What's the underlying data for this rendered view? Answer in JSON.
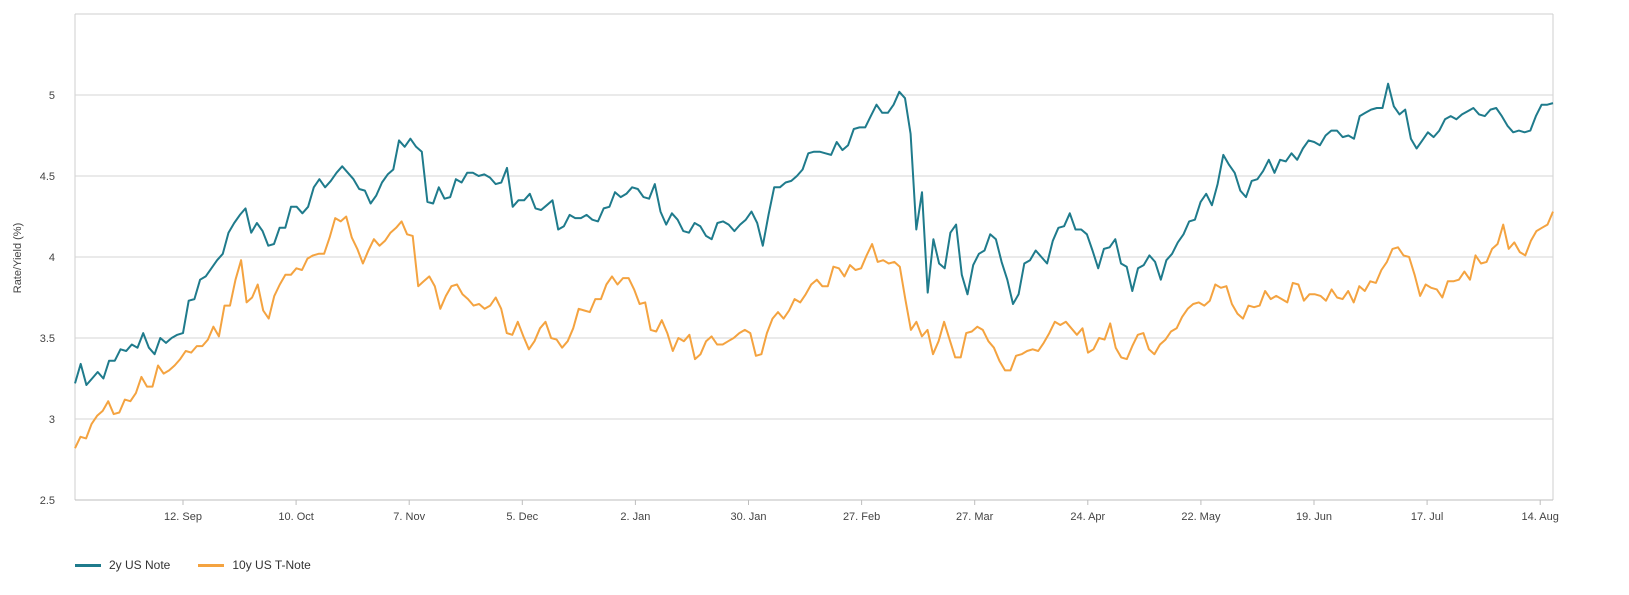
{
  "chart_data": {
    "type": "line",
    "ylabel": "Rate/Yield (%)",
    "ylim": [
      2.5,
      5.5
    ],
    "yticks": [
      2.5,
      3,
      3.5,
      4,
      4.5,
      5
    ],
    "ytick_labels": [
      "2.5",
      "3",
      "3.5",
      "4",
      "4.5",
      "5"
    ],
    "grid": true,
    "legend_position": "bottom-left",
    "x_tick_labels": [
      "12. Sep",
      "10. Oct",
      "7. Nov",
      "5. Dec",
      "2. Jan",
      "30. Jan",
      "27. Feb",
      "27. Mar",
      "24. Apr",
      "22. May",
      "19. Jun",
      "17. Jul",
      "14. Aug"
    ],
    "series": [
      {
        "name": "2y US Note",
        "color": "#1f7b8c",
        "values": [
          3.22,
          3.34,
          3.21,
          3.25,
          3.29,
          3.25,
          3.36,
          3.36,
          3.43,
          3.42,
          3.46,
          3.44,
          3.53,
          3.44,
          3.4,
          3.5,
          3.47,
          3.5,
          3.52,
          3.53,
          3.73,
          3.74,
          3.86,
          3.88,
          3.93,
          3.98,
          4.02,
          4.15,
          4.21,
          4.26,
          4.3,
          4.15,
          4.21,
          4.16,
          4.07,
          4.08,
          4.18,
          4.18,
          4.31,
          4.31,
          4.27,
          4.31,
          4.43,
          4.48,
          4.43,
          4.47,
          4.52,
          4.56,
          4.52,
          4.48,
          4.42,
          4.41,
          4.33,
          4.38,
          4.46,
          4.51,
          4.54,
          4.72,
          4.68,
          4.73,
          4.68,
          4.65,
          4.34,
          4.33,
          4.43,
          4.36,
          4.37,
          4.48,
          4.46,
          4.52,
          4.52,
          4.5,
          4.51,
          4.49,
          4.45,
          4.46,
          4.55,
          4.31,
          4.35,
          4.35,
          4.39,
          4.3,
          4.29,
          4.32,
          4.35,
          4.17,
          4.19,
          4.26,
          4.24,
          4.24,
          4.26,
          4.23,
          4.22,
          4.3,
          4.31,
          4.4,
          4.37,
          4.39,
          4.43,
          4.42,
          4.37,
          4.36,
          4.45,
          4.28,
          4.2,
          4.27,
          4.23,
          4.16,
          4.15,
          4.21,
          4.19,
          4.13,
          4.11,
          4.21,
          4.22,
          4.2,
          4.16,
          4.2,
          4.23,
          4.28,
          4.21,
          4.07,
          4.26,
          4.43,
          4.43,
          4.46,
          4.47,
          4.5,
          4.54,
          4.64,
          4.65,
          4.65,
          4.64,
          4.63,
          4.71,
          4.66,
          4.69,
          4.79,
          4.8,
          4.8,
          4.87,
          4.94,
          4.89,
          4.89,
          4.94,
          5.02,
          4.98,
          4.76,
          4.17,
          4.4,
          3.78,
          4.11,
          3.96,
          3.93,
          4.15,
          4.2,
          3.89,
          3.77,
          3.95,
          4.02,
          4.04,
          4.14,
          4.11,
          3.97,
          3.86,
          3.71,
          3.77,
          3.96,
          3.98,
          4.04,
          4.0,
          3.96,
          4.1,
          4.18,
          4.19,
          4.27,
          4.17,
          4.17,
          4.14,
          4.04,
          3.93,
          4.05,
          4.06,
          4.11,
          3.96,
          3.94,
          3.79,
          3.93,
          3.95,
          4.01,
          3.97,
          3.86,
          3.98,
          4.02,
          4.09,
          4.14,
          4.22,
          4.23,
          4.34,
          4.39,
          4.32,
          4.45,
          4.63,
          4.57,
          4.52,
          4.41,
          4.37,
          4.47,
          4.48,
          4.53,
          4.6,
          4.52,
          4.6,
          4.59,
          4.64,
          4.6,
          4.67,
          4.72,
          4.71,
          4.69,
          4.75,
          4.78,
          4.78,
          4.74,
          4.75,
          4.73,
          4.87,
          4.89,
          4.91,
          4.92,
          4.92,
          5.07,
          4.93,
          4.88,
          4.91,
          4.73,
          4.67,
          4.72,
          4.77,
          4.74,
          4.78,
          4.85,
          4.87,
          4.85,
          4.88,
          4.9,
          4.92,
          4.88,
          4.87,
          4.91,
          4.92,
          4.87,
          4.81,
          4.77,
          4.78,
          4.77,
          4.78,
          4.87,
          4.94,
          4.94,
          4.95
        ]
      },
      {
        "name": "10y US T-Note",
        "color": "#f4a340",
        "values": [
          2.82,
          2.89,
          2.88,
          2.97,
          3.02,
          3.05,
          3.11,
          3.03,
          3.04,
          3.12,
          3.11,
          3.16,
          3.26,
          3.2,
          3.2,
          3.33,
          3.28,
          3.3,
          3.33,
          3.37,
          3.42,
          3.41,
          3.45,
          3.45,
          3.49,
          3.57,
          3.51,
          3.7,
          3.7,
          3.86,
          3.98,
          3.72,
          3.75,
          3.83,
          3.67,
          3.62,
          3.76,
          3.83,
          3.89,
          3.89,
          3.93,
          3.92,
          3.99,
          4.01,
          4.02,
          4.02,
          4.12,
          4.24,
          4.22,
          4.25,
          4.12,
          4.05,
          3.96,
          4.04,
          4.11,
          4.07,
          4.1,
          4.15,
          4.18,
          4.22,
          4.14,
          4.13,
          3.82,
          3.85,
          3.88,
          3.82,
          3.68,
          3.76,
          3.82,
          3.83,
          3.77,
          3.74,
          3.7,
          3.71,
          3.68,
          3.7,
          3.75,
          3.68,
          3.53,
          3.52,
          3.6,
          3.51,
          3.43,
          3.48,
          3.56,
          3.6,
          3.5,
          3.49,
          3.44,
          3.48,
          3.56,
          3.68,
          3.67,
          3.66,
          3.74,
          3.74,
          3.83,
          3.88,
          3.83,
          3.87,
          3.87,
          3.8,
          3.71,
          3.72,
          3.55,
          3.54,
          3.61,
          3.53,
          3.42,
          3.5,
          3.48,
          3.52,
          3.37,
          3.4,
          3.48,
          3.51,
          3.46,
          3.46,
          3.48,
          3.5,
          3.53,
          3.55,
          3.53,
          3.39,
          3.4,
          3.53,
          3.62,
          3.66,
          3.62,
          3.67,
          3.74,
          3.72,
          3.77,
          3.83,
          3.86,
          3.82,
          3.82,
          3.94,
          3.93,
          3.88,
          3.95,
          3.92,
          3.93,
          4.01,
          4.08,
          3.97,
          3.98,
          3.96,
          3.97,
          3.94,
          3.74,
          3.55,
          3.6,
          3.51,
          3.55,
          3.4,
          3.48,
          3.6,
          3.49,
          3.38,
          3.38,
          3.53,
          3.54,
          3.57,
          3.55,
          3.48,
          3.44,
          3.36,
          3.3,
          3.3,
          3.39,
          3.4,
          3.42,
          3.43,
          3.42,
          3.47,
          3.53,
          3.6,
          3.58,
          3.6,
          3.56,
          3.52,
          3.56,
          3.41,
          3.43,
          3.5,
          3.49,
          3.59,
          3.44,
          3.38,
          3.37,
          3.45,
          3.52,
          3.53,
          3.43,
          3.4,
          3.46,
          3.49,
          3.54,
          3.56,
          3.63,
          3.68,
          3.71,
          3.72,
          3.7,
          3.73,
          3.83,
          3.81,
          3.82,
          3.71,
          3.65,
          3.62,
          3.7,
          3.69,
          3.7,
          3.79,
          3.74,
          3.76,
          3.74,
          3.72,
          3.84,
          3.83,
          3.73,
          3.77,
          3.77,
          3.76,
          3.73,
          3.8,
          3.75,
          3.74,
          3.79,
          3.72,
          3.82,
          3.79,
          3.85,
          3.84,
          3.92,
          3.97,
          4.05,
          4.06,
          4.01,
          4.0,
          3.89,
          3.76,
          3.83,
          3.81,
          3.8,
          3.75,
          3.85,
          3.85,
          3.86,
          3.91,
          3.86,
          4.01,
          3.96,
          3.97,
          4.05,
          4.08,
          4.2,
          4.05,
          4.09,
          4.03,
          4.01,
          4.1,
          4.16,
          4.18,
          4.2,
          4.28
        ]
      }
    ]
  }
}
